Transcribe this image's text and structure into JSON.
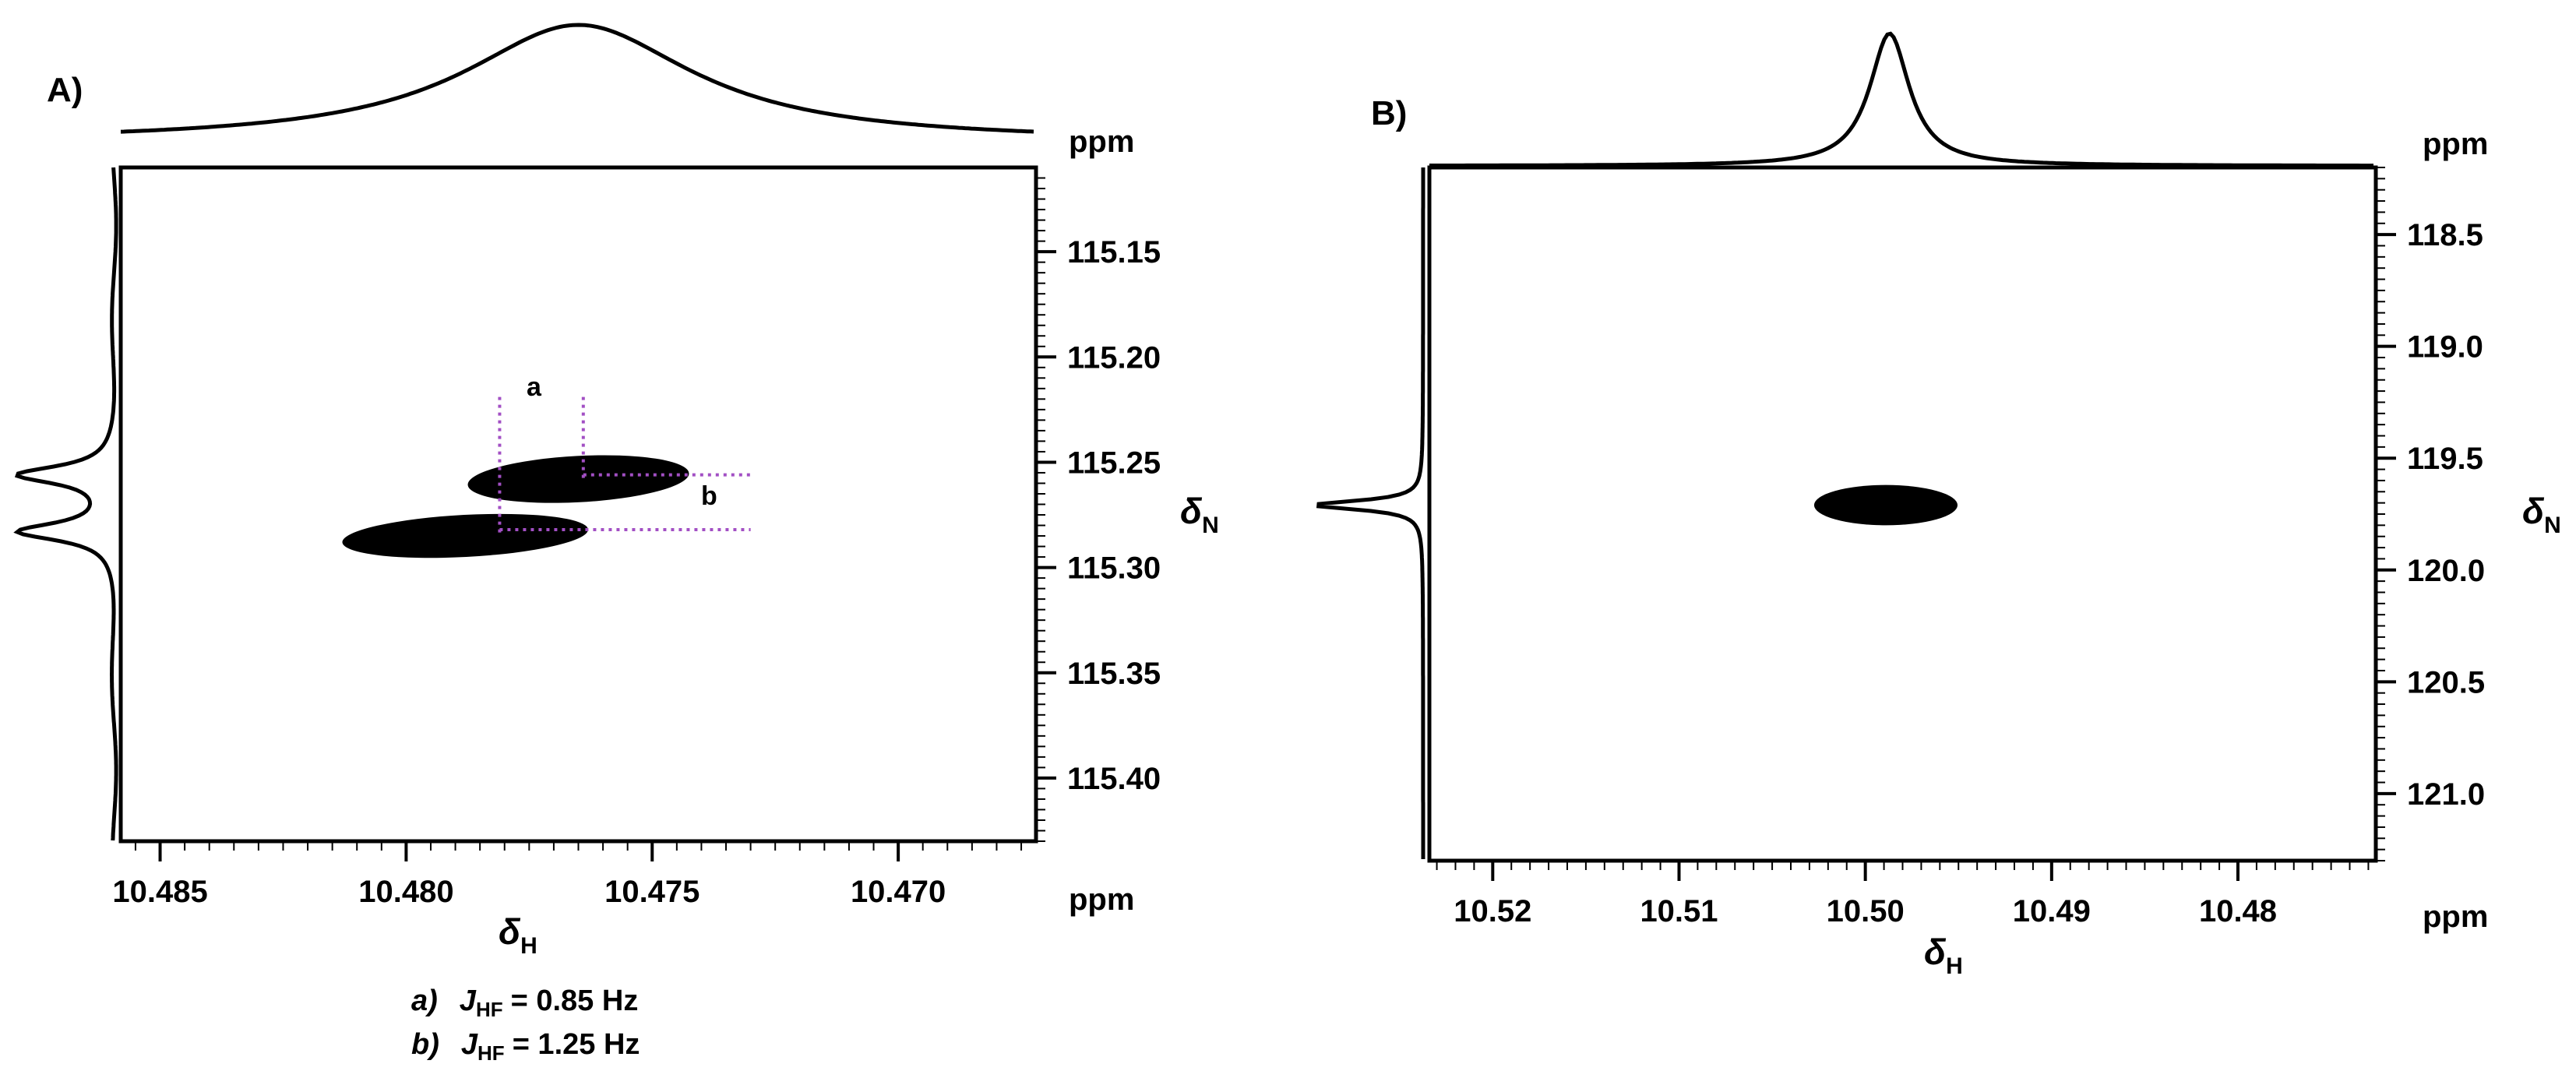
{
  "chart_data": [
    {
      "type": "contour",
      "panel_label": "A)",
      "x_axis": {
        "symbol": "δ",
        "subscript": "H",
        "unit": "ppm",
        "reversed": true,
        "range": [
          10.4858,
          10.4672
        ],
        "ticks": [
          10.485,
          10.48,
          10.475,
          10.47
        ],
        "tick_labels": [
          "10.485",
          "10.480",
          "10.475",
          "10.470"
        ]
      },
      "y_axis": {
        "symbol": "δ",
        "subscript": "N",
        "unit": "ppm",
        "reversed": true,
        "side": "right",
        "range": [
          115.11,
          115.43
        ],
        "ticks": [
          115.15,
          115.2,
          115.25,
          115.3,
          115.35,
          115.4
        ],
        "tick_labels": [
          "115.15",
          "115.20",
          "115.25",
          "115.30",
          "115.35",
          "115.40"
        ]
      },
      "peaks": [
        {
          "x": 10.4765,
          "y": 115.258,
          "width": 0.0045,
          "height": 0.022
        },
        {
          "x": 10.4788,
          "y": 115.285,
          "width": 0.005,
          "height": 0.02
        }
      ],
      "annotations": [
        {
          "label": "a",
          "x_from": 10.4781,
          "x_to": 10.4764,
          "orientation": "vertical"
        },
        {
          "label": "b",
          "y_from": 115.256,
          "y_to": 115.282,
          "orientation": "horizontal"
        }
      ],
      "projections": {
        "top": {
          "x": 10.4765,
          "width": 0.0057
        },
        "left": [
          {
            "y": 115.256,
            "width": 0.01
          },
          {
            "y": 115.283,
            "width": 0.01
          }
        ]
      },
      "coupling_constants": [
        {
          "letter": "a)",
          "symbol": "J",
          "subscript": "HF",
          "value": "= 0.85 Hz"
        },
        {
          "letter": "b)",
          "symbol": "J",
          "subscript": "HF",
          "value": "= 1.25 Hz"
        }
      ]
    },
    {
      "type": "contour",
      "panel_label": "B)",
      "x_axis": {
        "symbol": "δ",
        "subscript": "H",
        "unit": "ppm",
        "reversed": true,
        "range": [
          10.5234,
          10.4726
        ],
        "ticks": [
          10.52,
          10.51,
          10.5,
          10.49,
          10.48
        ],
        "tick_labels": [
          "10.52",
          "10.51",
          "10.50",
          "10.49",
          "10.48"
        ]
      },
      "y_axis": {
        "symbol": "δ",
        "subscript": "N",
        "unit": "ppm",
        "reversed": true,
        "side": "right",
        "range": [
          118.2,
          121.3
        ],
        "ticks": [
          118.5,
          119.0,
          119.5,
          120.0,
          120.5,
          121.0
        ],
        "tick_labels": [
          "118.5",
          "119.0",
          "119.5",
          "120.0",
          "120.5",
          "121.0"
        ]
      },
      "peaks": [
        {
          "x": 10.4989,
          "y": 119.71,
          "width": 0.0077,
          "height": 0.18
        }
      ],
      "projections": {
        "top": {
          "x": 10.4987,
          "width": 0.0026
        },
        "left": [
          {
            "y": 119.71,
            "width": 0.05
          }
        ]
      }
    }
  ]
}
